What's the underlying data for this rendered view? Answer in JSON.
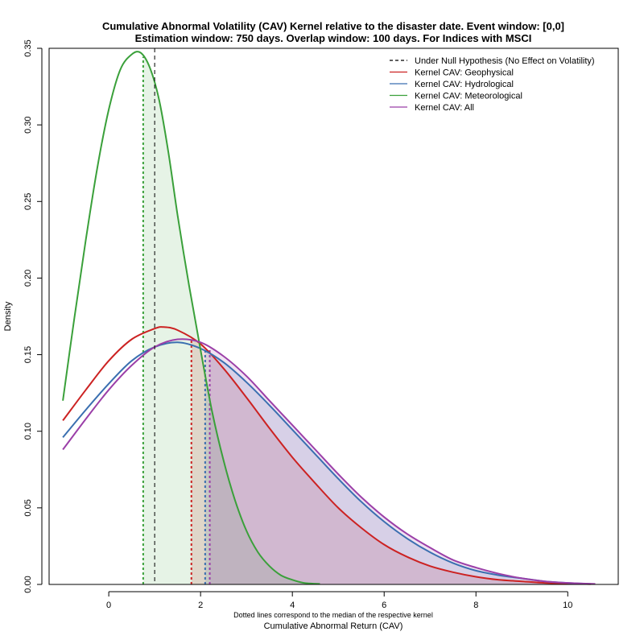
{
  "chart_data": {
    "type": "area",
    "title_line1": "Cumulative Abnormal Volatility (CAV) Kernel relative to the disaster date. Event window: [0,0]",
    "title_line2": "Estimation window: 750 days. Overlap window: 100 days. For Indices with MSCI",
    "xlabel": "Cumulative Abnormal Return (CAV)",
    "xnote": "Dotted lines correspond to the median of the respective kernel",
    "ylabel": "Density",
    "xlim": [
      -1.3,
      11.1
    ],
    "ylim": [
      0,
      0.35
    ],
    "x_ticks": [
      "0",
      "2",
      "4",
      "6",
      "8",
      "10"
    ],
    "x_tick_values": [
      0,
      2,
      4,
      6,
      8,
      10
    ],
    "y_ticks": [
      "0.00",
      "0.05",
      "0.10",
      "0.15",
      "0.20",
      "0.25",
      "0.30",
      "0.35"
    ],
    "y_tick_values": [
      0,
      0.05,
      0.1,
      0.15,
      0.2,
      0.25,
      0.3,
      0.35
    ],
    "grid": false,
    "legend_position": "top-right",
    "null_line": {
      "name": "Under Null Hypothesis (No Effect on Volatility)",
      "x": 1.0,
      "color": "#000000"
    },
    "series": [
      {
        "name": "Kernel CAV: Geophysical",
        "color": "#cc2222",
        "fill": "rgba(204,34,34,0.15)",
        "median": 1.8,
        "x": [
          -1.0,
          -0.5,
          0.0,
          0.5,
          1.0,
          1.2,
          1.5,
          2.0,
          2.5,
          3.0,
          3.5,
          4.0,
          4.5,
          5.0,
          5.5,
          6.0,
          6.5,
          7.0,
          7.5,
          8.0,
          8.5,
          9.0,
          9.5,
          10.0,
          10.5
        ],
        "y": [
          0.107,
          0.127,
          0.146,
          0.16,
          0.167,
          0.168,
          0.166,
          0.157,
          0.141,
          0.122,
          0.102,
          0.083,
          0.066,
          0.05,
          0.037,
          0.026,
          0.018,
          0.012,
          0.008,
          0.005,
          0.003,
          0.002,
          0.001,
          0.0005,
          0.0002
        ]
      },
      {
        "name": "Kernel CAV: Hydrological",
        "color": "#3a6fb0",
        "fill": "rgba(58,111,176,0.15)",
        "median": 2.1,
        "x": [
          -1.0,
          -0.5,
          0.0,
          0.5,
          1.0,
          1.5,
          2.0,
          2.5,
          3.0,
          3.5,
          4.0,
          4.5,
          5.0,
          5.5,
          6.0,
          6.5,
          7.0,
          7.5,
          8.0,
          8.5,
          9.0,
          9.5,
          10.0,
          10.5
        ],
        "y": [
          0.096,
          0.114,
          0.131,
          0.146,
          0.155,
          0.158,
          0.154,
          0.145,
          0.132,
          0.117,
          0.101,
          0.085,
          0.069,
          0.054,
          0.041,
          0.03,
          0.021,
          0.014,
          0.009,
          0.006,
          0.004,
          0.002,
          0.001,
          0.0003
        ]
      },
      {
        "name": "Kernel CAV: Meteorological",
        "color": "#3aa03a",
        "fill": "rgba(58,160,58,0.13)",
        "median": 0.75,
        "x": [
          -1.0,
          -0.75,
          -0.5,
          -0.25,
          0.0,
          0.25,
          0.5,
          0.7,
          0.9,
          1.1,
          1.3,
          1.5,
          1.75,
          2.0,
          2.25,
          2.5,
          2.75,
          3.0,
          3.25,
          3.5,
          3.75,
          4.0,
          4.25,
          4.6
        ],
        "y": [
          0.12,
          0.174,
          0.225,
          0.272,
          0.31,
          0.336,
          0.346,
          0.347,
          0.337,
          0.316,
          0.282,
          0.241,
          0.195,
          0.153,
          0.113,
          0.081,
          0.055,
          0.035,
          0.021,
          0.012,
          0.006,
          0.003,
          0.001,
          0.0003
        ]
      },
      {
        "name": "Kernel CAV: All",
        "color": "#9b3fa8",
        "fill": "rgba(155,63,168,0.15)",
        "median": 2.2,
        "x": [
          -1.0,
          -0.5,
          0.0,
          0.5,
          1.0,
          1.5,
          2.0,
          2.5,
          3.0,
          3.5,
          4.0,
          4.5,
          5.0,
          5.5,
          6.0,
          6.5,
          7.0,
          7.5,
          8.0,
          8.5,
          9.0,
          9.5,
          10.0,
          10.6
        ],
        "y": [
          0.088,
          0.108,
          0.127,
          0.143,
          0.155,
          0.16,
          0.158,
          0.149,
          0.136,
          0.12,
          0.104,
          0.088,
          0.072,
          0.057,
          0.044,
          0.033,
          0.024,
          0.016,
          0.011,
          0.007,
          0.004,
          0.002,
          0.001,
          0.0003
        ]
      }
    ]
  }
}
